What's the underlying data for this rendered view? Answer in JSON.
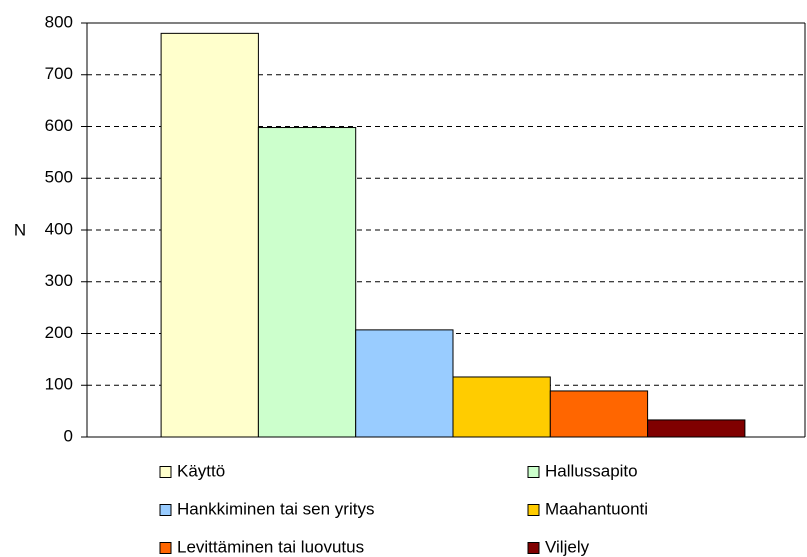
{
  "chart_data": {
    "type": "bar",
    "y_label": "N",
    "categories": [
      null
    ],
    "series": [
      {
        "name": "Käyttö",
        "color": "#ffffcc",
        "values": [
          780
        ]
      },
      {
        "name": "Hallussapito",
        "color": "#ccffcc",
        "values": [
          598
        ]
      },
      {
        "name": "Hankkiminen tai sen yritys",
        "color": "#99ccff",
        "values": [
          207
        ]
      },
      {
        "name": "Maahantuonti",
        "color": "#ffcc00",
        "values": [
          116
        ]
      },
      {
        "name": "Levittäminen tai luovutus",
        "color": "#ff6600",
        "values": [
          89
        ]
      },
      {
        "name": "Viljely",
        "color": "#800000",
        "values": [
          33
        ]
      }
    ],
    "ylim": [
      0,
      800
    ],
    "yticks": [
      0,
      100,
      200,
      300,
      400,
      500,
      600,
      700,
      800
    ],
    "grid": true,
    "legend": "bottom"
  }
}
